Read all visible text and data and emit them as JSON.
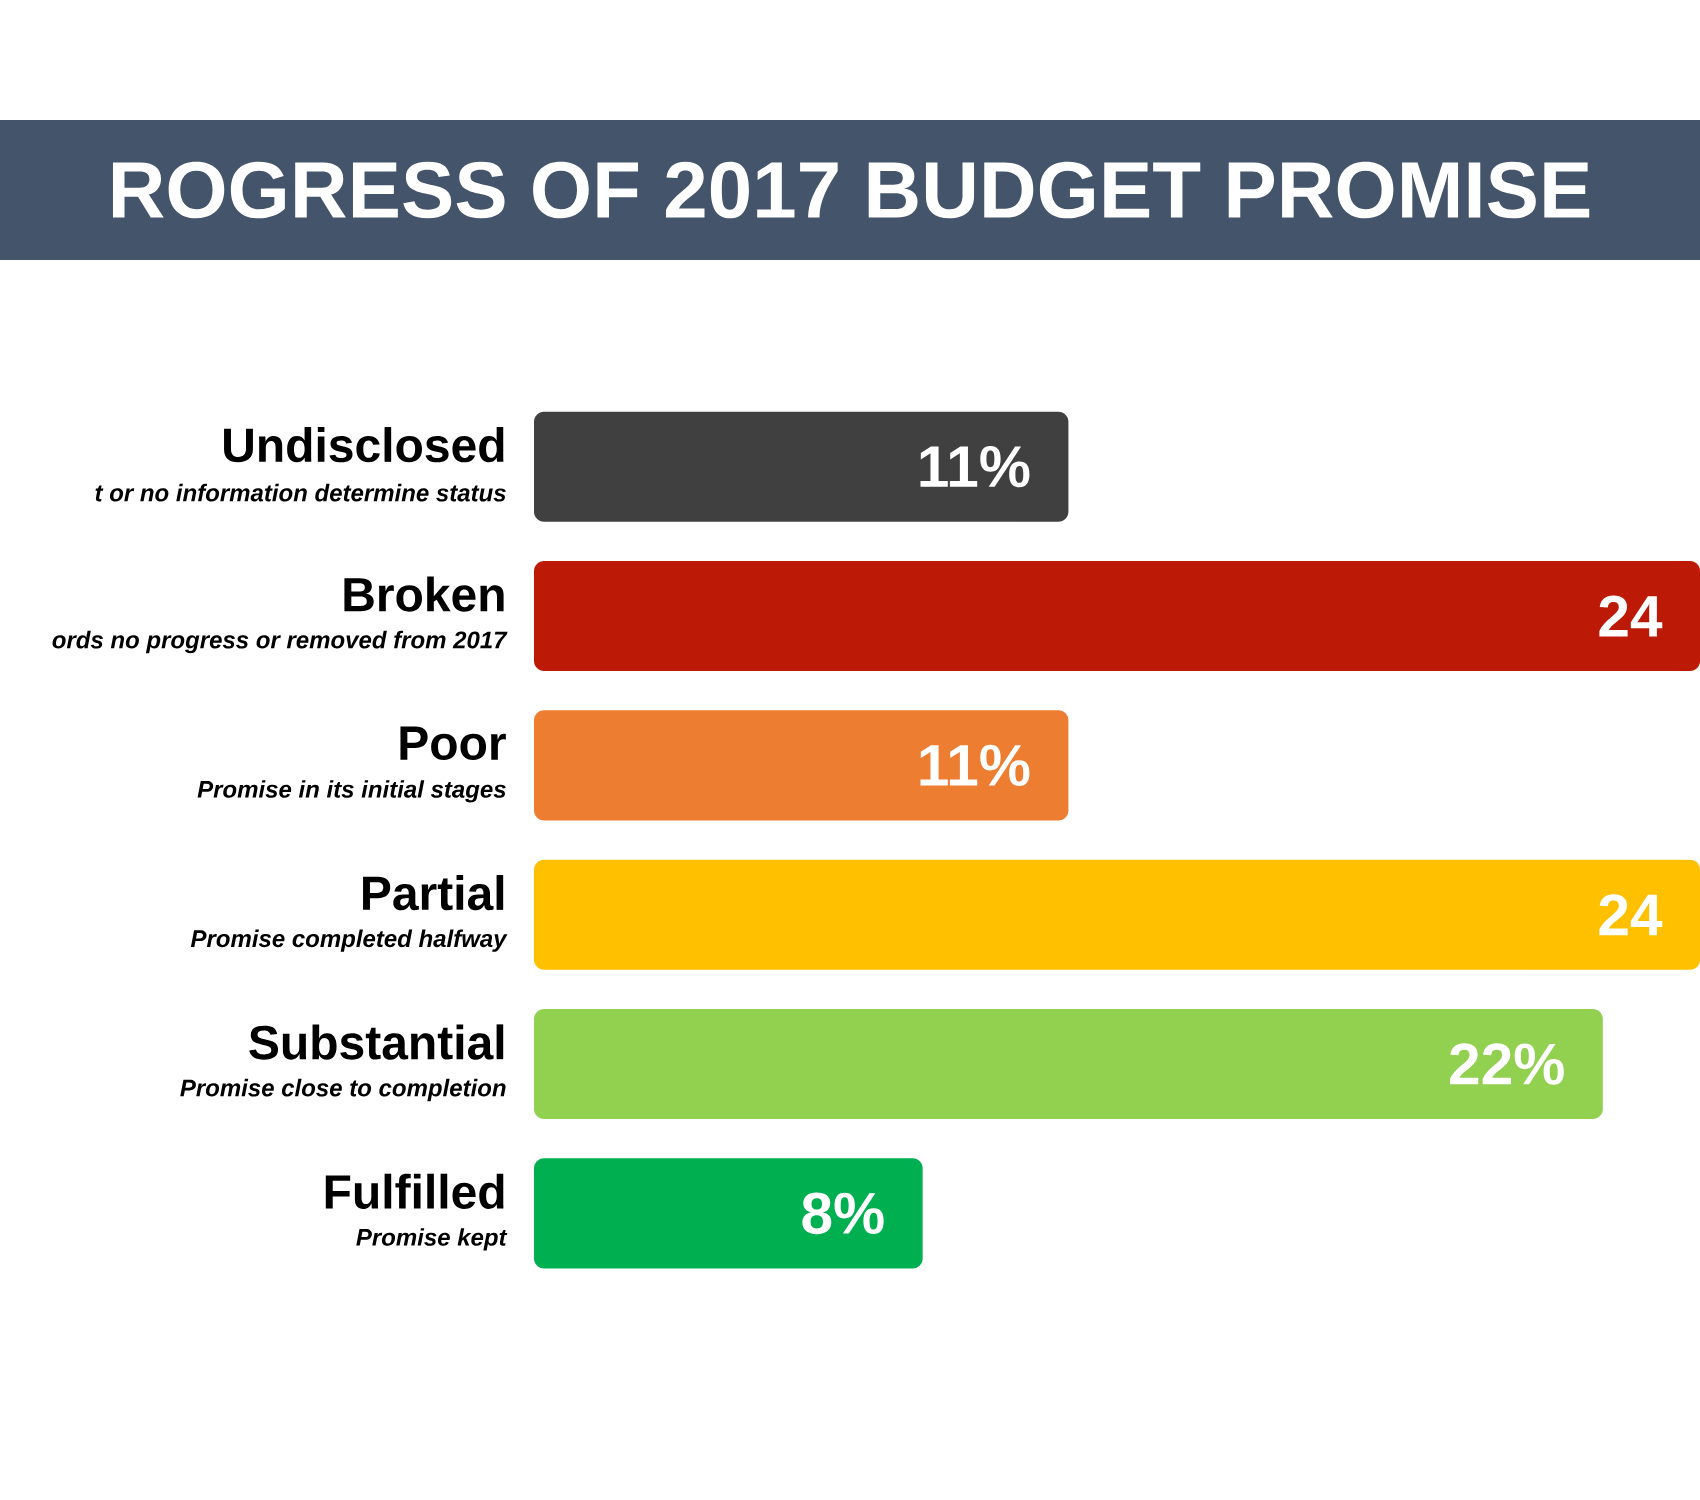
{
  "chart_data": {
    "type": "bar",
    "orientation": "horizontal",
    "title": "ROGRESS OF 2017 BUDGET PROMISE",
    "categories": [
      "Undisclosed",
      "Broken",
      "Poor",
      "Partial",
      "Substantial",
      "Fulfilled"
    ],
    "values": [
      11,
      24,
      11,
      24,
      22,
      8
    ],
    "colors": [
      "#404040",
      "#bc1a06",
      "#ed7d31",
      "#ffc000",
      "#92d050",
      "#00b050"
    ],
    "value_labels": [
      "11%",
      "24",
      "11%",
      "24",
      "22%",
      "8%"
    ],
    "annotations": [
      "t or no information determine status",
      "ords no progress or removed from 2017",
      "Promise in its initial stages",
      "Promise completed halfway",
      "Promise close to completion",
      "Promise kept"
    ],
    "xlim": [
      0,
      24
    ]
  }
}
